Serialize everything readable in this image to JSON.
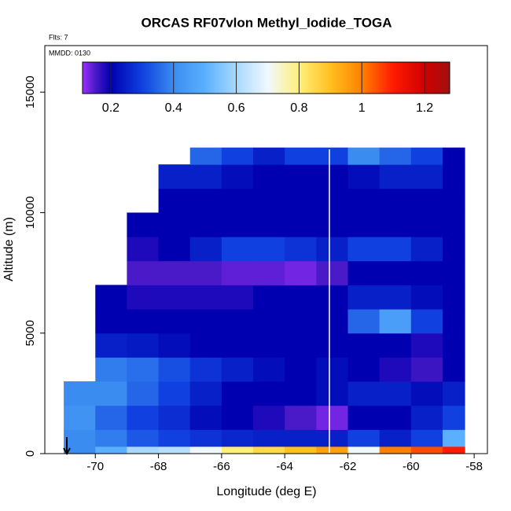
{
  "chart_data": {
    "type": "heatmap",
    "title": "ORCAS RF07vlon Methyl_Iodide_TOGA",
    "flights_label": "Flts: 7",
    "date_label": "MMDD: 0130",
    "x_label": "Longitude (deg E)",
    "y_label": "Altitude (m)",
    "xlim": [
      -71.6,
      -57.58
    ],
    "ylim": [
      0,
      16930
    ],
    "xticks": [
      -70,
      -68,
      -66,
      -64,
      -62,
      -60,
      -58
    ],
    "yticks": [
      0,
      5000,
      10000,
      15000
    ],
    "x_bins": [
      -71,
      -70,
      -69,
      -68,
      -67,
      -66,
      -65,
      -64,
      -63,
      -62,
      -61,
      -60,
      -59,
      -58.3
    ],
    "y_bins": [
      0,
      300,
      1000,
      2000,
      3000,
      4000,
      5000,
      6000,
      7000,
      8000,
      9000,
      10000,
      11000,
      12000,
      12700
    ],
    "z": [
      [
        0.4,
        0.5,
        0.6,
        0.62,
        0.7,
        0.8,
        0.85,
        0.9,
        0.95,
        0.7,
        1.0,
        1.05,
        1.1
      ],
      [
        0.4,
        0.38,
        0.33,
        0.3,
        0.28,
        0.26,
        0.25,
        0.25,
        0.25,
        0.3,
        0.25,
        0.3,
        0.5
      ],
      [
        0.42,
        0.35,
        0.3,
        0.27,
        0.22,
        0.2,
        0.18,
        0.15,
        0.13,
        0.2,
        0.2,
        0.25,
        0.3
      ],
      [
        0.4,
        0.4,
        0.35,
        0.3,
        0.25,
        0.2,
        0.2,
        0.2,
        0.22,
        0.25,
        0.25,
        0.22,
        0.25
      ],
      [
        null,
        0.38,
        0.36,
        0.32,
        0.28,
        0.25,
        0.22,
        0.2,
        0.22,
        0.2,
        0.18,
        0.16,
        0.2
      ],
      [
        null,
        0.25,
        0.24,
        0.22,
        0.2,
        0.2,
        0.2,
        0.2,
        0.2,
        0.2,
        0.2,
        0.18,
        0.2
      ],
      [
        null,
        0.2,
        0.2,
        0.2,
        0.2,
        0.2,
        0.2,
        0.2,
        0.2,
        0.35,
        0.45,
        0.3,
        0.2
      ],
      [
        null,
        0.2,
        0.18,
        0.18,
        0.18,
        0.18,
        0.2,
        0.2,
        0.2,
        0.25,
        0.25,
        0.22,
        0.2
      ],
      [
        null,
        null,
        0.15,
        0.15,
        0.15,
        0.14,
        0.14,
        0.13,
        0.15,
        0.2,
        0.2,
        0.2,
        0.2
      ],
      [
        null,
        null,
        0.18,
        0.2,
        0.25,
        0.3,
        0.3,
        0.28,
        0.25,
        0.3,
        0.3,
        0.25,
        0.2
      ],
      [
        null,
        null,
        0.2,
        0.2,
        0.2,
        0.2,
        0.2,
        0.2,
        0.2,
        0.2,
        0.2,
        0.2,
        0.2
      ],
      [
        null,
        null,
        null,
        0.2,
        0.2,
        0.2,
        0.2,
        0.2,
        0.2,
        0.2,
        0.2,
        0.2,
        0.2
      ],
      [
        null,
        null,
        null,
        0.25,
        0.25,
        0.22,
        0.2,
        0.2,
        0.2,
        0.22,
        0.25,
        0.25,
        0.2
      ],
      [
        null,
        null,
        null,
        null,
        0.35,
        0.3,
        0.25,
        0.3,
        0.3,
        0.4,
        0.35,
        0.3,
        0.2
      ]
    ],
    "clim": [
      0.11,
      1.28
    ],
    "cticks": [
      0.2,
      0.4,
      0.6,
      0.8,
      1.0,
      1.2
    ],
    "colorscale": [
      [
        0.11,
        "#9b30ff"
      ],
      [
        0.15,
        "#4b1ac8"
      ],
      [
        0.2,
        "#0000b0"
      ],
      [
        0.3,
        "#1040e0"
      ],
      [
        0.4,
        "#3a8cf0"
      ],
      [
        0.5,
        "#5ab0ff"
      ],
      [
        0.6,
        "#a8d8ff"
      ],
      [
        0.7,
        "#f0f8ff"
      ],
      [
        0.8,
        "#fff07a"
      ],
      [
        0.9,
        "#ffc020"
      ],
      [
        1.0,
        "#ff8000"
      ],
      [
        1.1,
        "#ff1a00"
      ],
      [
        1.2,
        "#d00000"
      ],
      [
        1.28,
        "#a01010"
      ]
    ]
  }
}
